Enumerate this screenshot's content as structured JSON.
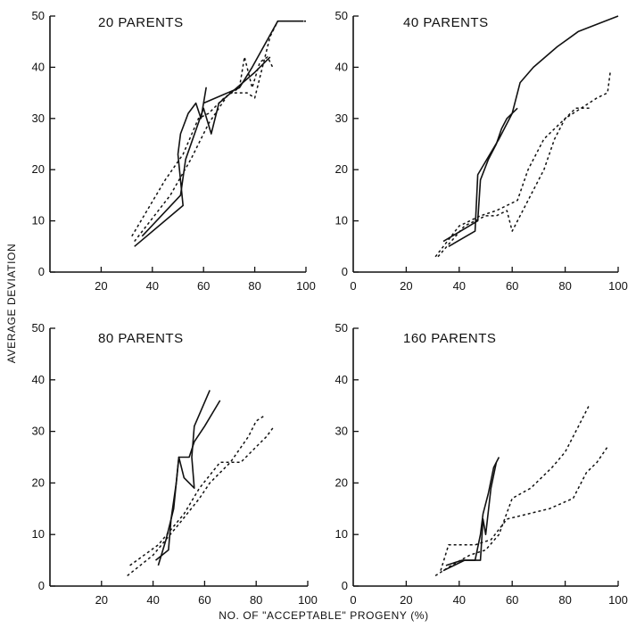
{
  "figure": {
    "ylabel": "AVERAGE DEVIATION",
    "xlabel": "NO. OF \"ACCEPTABLE\" PROGENY (%)"
  },
  "chart_data": [
    {
      "type": "line",
      "title": "20 PARENTS",
      "x_ticks": [
        "20",
        "40",
        "60",
        "80",
        "100"
      ],
      "y_ticks": [
        "0",
        "10",
        "20",
        "30",
        "40",
        "50"
      ],
      "xlim": [
        0,
        100
      ],
      "ylim": [
        0,
        50
      ],
      "series": [
        {
          "style": "solid",
          "points": [
            [
              33,
              5
            ],
            [
              52,
              13
            ],
            [
              50,
              23
            ],
            [
              51,
              27
            ],
            [
              54,
              31
            ],
            [
              57,
              33
            ],
            [
              59,
              30
            ],
            [
              61,
              36
            ],
            [
              60,
              33
            ],
            [
              74,
              36
            ],
            [
              79,
              40
            ],
            [
              89,
              49
            ],
            [
              99,
              49
            ]
          ]
        },
        {
          "style": "solid",
          "points": [
            [
              36,
              7
            ],
            [
              51,
              15
            ],
            [
              53,
              22
            ],
            [
              60,
              32
            ],
            [
              63,
              27
            ],
            [
              66,
              33
            ],
            [
              73,
              36
            ],
            [
              80,
              39
            ],
            [
              86,
              42
            ]
          ]
        },
        {
          "style": "dashed",
          "points": [
            [
              32,
              7
            ],
            [
              45,
              18
            ],
            [
              52,
              23
            ],
            [
              58,
              30
            ],
            [
              62,
              31
            ],
            [
              68,
              34
            ],
            [
              74,
              36
            ],
            [
              76,
              42
            ],
            [
              79,
              36
            ],
            [
              82,
              41
            ],
            [
              85,
              42
            ],
            [
              87,
              40
            ]
          ]
        },
        {
          "style": "dashed",
          "points": [
            [
              33,
              6
            ],
            [
              47,
              15
            ],
            [
              55,
              22
            ],
            [
              62,
              29
            ],
            [
              70,
              35
            ],
            [
              77,
              35
            ],
            [
              80,
              34
            ],
            [
              86,
              46
            ],
            [
              89,
              49
            ],
            [
              100,
              49
            ]
          ]
        }
      ]
    },
    {
      "type": "line",
      "title": "40 PARENTS",
      "x_ticks": [
        "0",
        "20",
        "40",
        "60",
        "80",
        "100"
      ],
      "y_ticks": [
        "0",
        "10",
        "20",
        "30",
        "40",
        "50"
      ],
      "xlim": [
        0,
        100
      ],
      "ylim": [
        0,
        50
      ],
      "series": [
        {
          "style": "solid",
          "points": [
            [
              34,
              6
            ],
            [
              47,
              10
            ],
            [
              48,
              18
            ],
            [
              51,
              22
            ],
            [
              54,
              25
            ],
            [
              56,
              28
            ],
            [
              58,
              30
            ],
            [
              62,
              32
            ]
          ]
        },
        {
          "style": "solid",
          "points": [
            [
              36,
              5
            ],
            [
              46,
              8
            ],
            [
              47,
              19
            ],
            [
              55,
              26
            ],
            [
              60,
              31
            ],
            [
              63,
              37
            ],
            [
              68,
              40
            ],
            [
              77,
              44
            ],
            [
              85,
              47
            ],
            [
              95,
              49
            ],
            [
              100,
              50
            ]
          ]
        },
        {
          "style": "dashed",
          "points": [
            [
              32,
              3
            ],
            [
              42,
              9
            ],
            [
              50,
              11
            ],
            [
              54,
              11
            ],
            [
              58,
              12
            ],
            [
              60,
              8
            ],
            [
              66,
              14
            ],
            [
              72,
              20
            ],
            [
              76,
              26
            ],
            [
              80,
              30
            ],
            [
              86,
              32
            ],
            [
              92,
              34
            ],
            [
              96,
              35
            ],
            [
              97,
              39
            ]
          ]
        },
        {
          "style": "dashed",
          "points": [
            [
              31,
              3
            ],
            [
              40,
              9
            ],
            [
              48,
              11
            ],
            [
              54,
              12
            ],
            [
              62,
              14
            ],
            [
              66,
              20
            ],
            [
              72,
              26
            ],
            [
              78,
              29
            ],
            [
              84,
              32
            ],
            [
              90,
              32
            ]
          ]
        }
      ]
    },
    {
      "type": "line",
      "title": "80 PARENTS",
      "x_ticks": [
        "20",
        "40",
        "60",
        "80",
        "100"
      ],
      "y_ticks": [
        "0",
        "10",
        "20",
        "30",
        "40",
        "50"
      ],
      "xlim": [
        0,
        100
      ],
      "ylim": [
        0,
        50
      ],
      "series": [
        {
          "style": "solid",
          "points": [
            [
              42,
              4
            ],
            [
              45,
              9
            ],
            [
              48,
              15
            ],
            [
              50,
              25
            ],
            [
              52,
              21
            ],
            [
              56,
              19
            ],
            [
              55,
              25
            ],
            [
              56,
              31
            ],
            [
              62,
              38
            ]
          ]
        },
        {
          "style": "solid",
          "points": [
            [
              41,
              5
            ],
            [
              46,
              7
            ],
            [
              47,
              13
            ],
            [
              49,
              20
            ],
            [
              50,
              25
            ],
            [
              54,
              25
            ],
            [
              56,
              28
            ],
            [
              60,
              31
            ],
            [
              66,
              36
            ]
          ]
        },
        {
          "style": "dashed",
          "points": [
            [
              30,
              2
            ],
            [
              40,
              6
            ],
            [
              50,
              12
            ],
            [
              58,
              17
            ],
            [
              62,
              20
            ],
            [
              70,
              24
            ],
            [
              77,
              29
            ],
            [
              80,
              32
            ],
            [
              83,
              33
            ]
          ]
        },
        {
          "style": "dashed",
          "points": [
            [
              31,
              4
            ],
            [
              42,
              8
            ],
            [
              52,
              14
            ],
            [
              58,
              19
            ],
            [
              66,
              24
            ],
            [
              74,
              24
            ],
            [
              80,
              27
            ],
            [
              84,
              29
            ],
            [
              87,
              31
            ]
          ]
        }
      ]
    },
    {
      "type": "line",
      "title": "160 PARENTS",
      "x_ticks": [
        "0",
        "20",
        "40",
        "60",
        "80",
        "100"
      ],
      "y_ticks": [
        "0",
        "10",
        "20",
        "30",
        "40",
        "50"
      ],
      "xlim": [
        0,
        100
      ],
      "ylim": [
        0,
        50
      ],
      "series": [
        {
          "style": "solid",
          "points": [
            [
              34,
              3
            ],
            [
              42,
              5
            ],
            [
              46,
              5
            ],
            [
              48,
              10
            ],
            [
              49,
              14
            ],
            [
              51,
              18
            ],
            [
              53,
              23
            ],
            [
              55,
              25
            ]
          ]
        },
        {
          "style": "solid",
          "points": [
            [
              35,
              4
            ],
            [
              41,
              5
            ],
            [
              48,
              5
            ],
            [
              49,
              13
            ],
            [
              50,
              10
            ],
            [
              52,
              19
            ],
            [
              54,
              24
            ]
          ]
        },
        {
          "style": "dashed",
          "points": [
            [
              31,
              2
            ],
            [
              37,
              4
            ],
            [
              44,
              6
            ],
            [
              50,
              7
            ],
            [
              55,
              10
            ],
            [
              60,
              17
            ],
            [
              67,
              19
            ],
            [
              75,
              23
            ],
            [
              80,
              26
            ],
            [
              85,
              31
            ],
            [
              89,
              35
            ]
          ]
        },
        {
          "style": "dashed",
          "points": [
            [
              33,
              3
            ],
            [
              36,
              8
            ],
            [
              46,
              8
            ],
            [
              52,
              9
            ],
            [
              58,
              13
            ],
            [
              66,
              14
            ],
            [
              74,
              15
            ],
            [
              83,
              17
            ],
            [
              88,
              22
            ],
            [
              92,
              24
            ],
            [
              96,
              27
            ]
          ]
        }
      ]
    }
  ]
}
